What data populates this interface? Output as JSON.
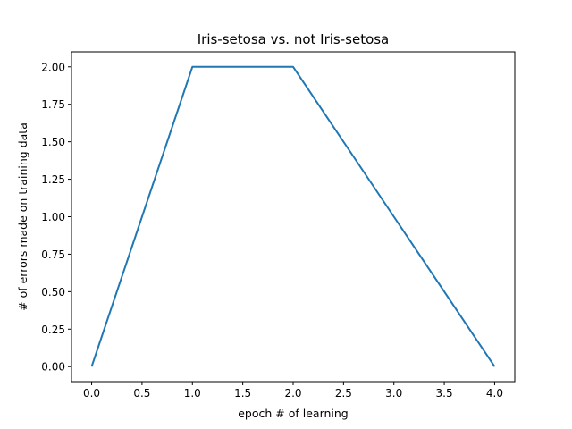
{
  "chart_data": {
    "type": "line",
    "title": "Iris-setosa vs. not Iris-setosa",
    "xlabel": "epoch # of learning",
    "ylabel": "# of errors made on training data",
    "x": [
      0,
      1,
      2,
      3,
      4
    ],
    "series": [
      {
        "values": [
          0,
          2,
          2,
          1,
          0
        ],
        "color": "#1f77b4"
      }
    ],
    "xlim": [
      -0.2,
      4.2
    ],
    "ylim": [
      -0.1,
      2.1
    ],
    "xticks": [
      0.0,
      0.5,
      1.0,
      1.5,
      2.0,
      2.5,
      3.0,
      3.5,
      4.0
    ],
    "xtick_labels": [
      "0.0",
      "0.5",
      "1.0",
      "1.5",
      "2.0",
      "2.5",
      "3.0",
      "3.5",
      "4.0"
    ],
    "yticks": [
      0.0,
      0.25,
      0.5,
      0.75,
      1.0,
      1.25,
      1.5,
      1.75,
      2.0
    ],
    "ytick_labels": [
      "0.00",
      "0.25",
      "0.50",
      "0.75",
      "1.00",
      "1.25",
      "1.50",
      "1.75",
      "2.00"
    ],
    "grid": false
  }
}
